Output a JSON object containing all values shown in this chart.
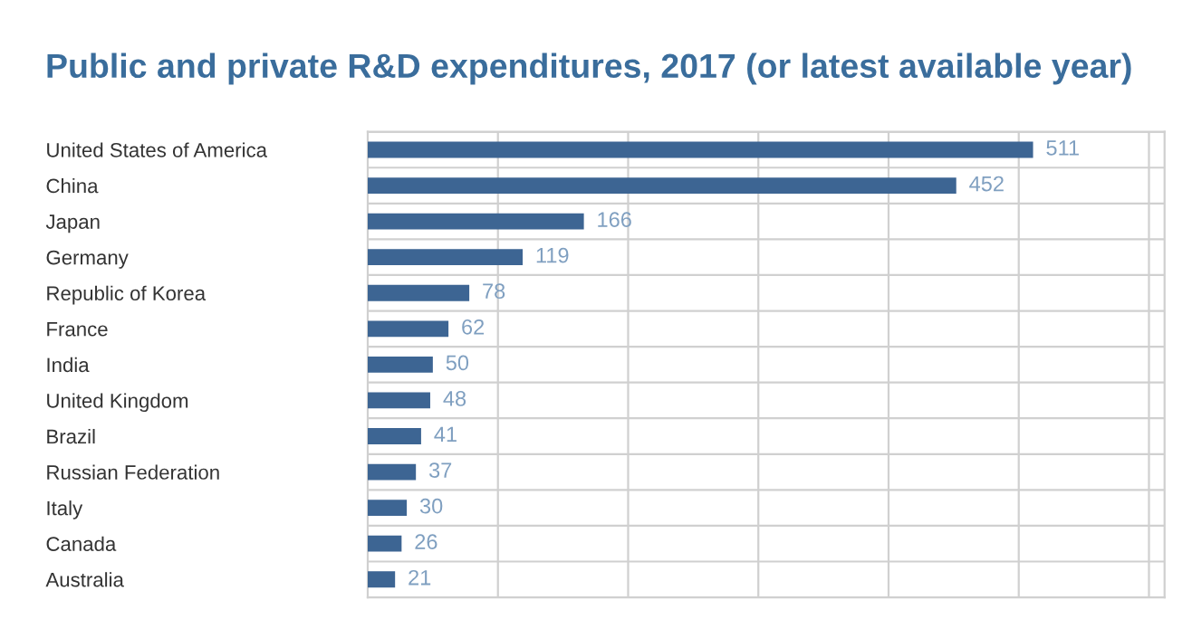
{
  "chart_data": {
    "type": "bar",
    "orientation": "horizontal",
    "title": "Public and private R&D expenditures, 2017 (or latest available year)",
    "categories": [
      "United States of America",
      "China",
      "Japan",
      "Germany",
      "Republic of Korea",
      "France",
      "India",
      "United Kingdom",
      "Brazil",
      "Russian Federation",
      "Italy",
      "Canada",
      "Australia"
    ],
    "values": [
      511,
      452,
      166,
      119,
      78,
      62,
      50,
      48,
      41,
      37,
      30,
      26,
      21
    ],
    "color": "#3d6593",
    "data_labels": true,
    "xlim": [
      0,
      612
    ],
    "xticks": [
      {
        "value": 100,
        "label": null
      },
      {
        "value": 200,
        "label": null
      },
      {
        "value": 300,
        "label": null
      },
      {
        "value": 400,
        "label": null
      },
      {
        "value": 500,
        "label": null
      },
      {
        "value": 600,
        "label": null
      }
    ],
    "grid": true
  }
}
